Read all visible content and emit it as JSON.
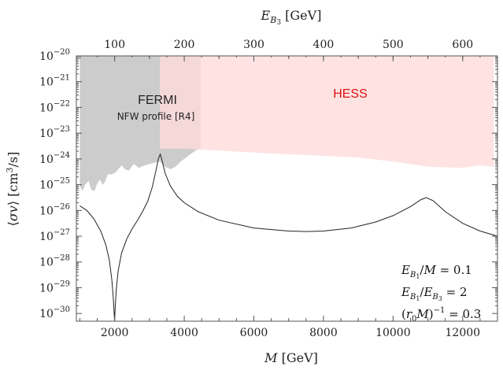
{
  "chart_data": {
    "type": "line",
    "xlabel": "M [GeV]",
    "ylabel": "⟨σv⟩ [cm³/s]",
    "x2label": "E_B3 [GeV]",
    "xlim": [
      900,
      13000
    ],
    "ylim_log10": [
      -30.3,
      -20
    ],
    "x_ticks": [
      2000,
      4000,
      6000,
      8000,
      10000,
      12000
    ],
    "x2_ticks": [
      100,
      200,
      300,
      400,
      500,
      600
    ],
    "x2_to_x_factor": 20,
    "y_ticks_exp": [
      -20,
      -21,
      -22,
      -23,
      -24,
      -25,
      -26,
      -27,
      -28,
      -29,
      -30
    ],
    "regions": [
      {
        "name": "FERMI",
        "sublabel": "NFW profile [R4]",
        "color": "#cccccc",
        "lower_boundary": [
          [
            1000,
            -25.05
          ],
          [
            1080,
            -25.25
          ],
          [
            1150,
            -25.0
          ],
          [
            1250,
            -24.85
          ],
          [
            1330,
            -25.2
          ],
          [
            1420,
            -25.25
          ],
          [
            1500,
            -24.95
          ],
          [
            1580,
            -24.8
          ],
          [
            1650,
            -25.0
          ],
          [
            1720,
            -24.9
          ],
          [
            1800,
            -24.6
          ],
          [
            1900,
            -24.6
          ],
          [
            2000,
            -24.55
          ],
          [
            2100,
            -24.4
          ],
          [
            2200,
            -24.25
          ],
          [
            2300,
            -24.4
          ],
          [
            2400,
            -24.45
          ],
          [
            2550,
            -24.2
          ],
          [
            2700,
            -24.35
          ],
          [
            2850,
            -24.25
          ],
          [
            3000,
            -24.2
          ],
          [
            3150,
            -24.15
          ],
          [
            3300,
            -24.1
          ],
          [
            3450,
            -24.3
          ],
          [
            3600,
            -24.4
          ],
          [
            3750,
            -24.3
          ],
          [
            3900,
            -24.1
          ],
          [
            4050,
            -23.95
          ],
          [
            4200,
            -23.8
          ],
          [
            4350,
            -23.65
          ],
          [
            4480,
            -23.6
          ]
        ],
        "x_range": [
          1000,
          4480
        ]
      },
      {
        "name": "HESS",
        "color": "#ffdcdc",
        "lower_boundary": [
          [
            3300,
            -23.6
          ],
          [
            4000,
            -23.6
          ],
          [
            5000,
            -23.68
          ],
          [
            6000,
            -23.75
          ],
          [
            7000,
            -23.82
          ],
          [
            8000,
            -23.88
          ],
          [
            9000,
            -23.95
          ],
          [
            10000,
            -24.1
          ],
          [
            11000,
            -24.3
          ],
          [
            12000,
            -24.35
          ],
          [
            12500,
            -24.25
          ],
          [
            12900,
            -24.3
          ]
        ],
        "x_range": [
          3300,
          12900
        ]
      }
    ],
    "series": [
      {
        "name": "",
        "color": "#222222",
        "points": [
          [
            1000,
            -25.82
          ],
          [
            1200,
            -26.0
          ],
          [
            1400,
            -26.32
          ],
          [
            1600,
            -26.8
          ],
          [
            1750,
            -27.35
          ],
          [
            1850,
            -27.95
          ],
          [
            1920,
            -28.7
          ],
          [
            1960,
            -29.4
          ],
          [
            1985,
            -30.0
          ],
          [
            2000,
            -30.3
          ],
          [
            2015,
            -29.8
          ],
          [
            2045,
            -29.1
          ],
          [
            2100,
            -28.35
          ],
          [
            2200,
            -27.65
          ],
          [
            2350,
            -27.1
          ],
          [
            2500,
            -26.72
          ],
          [
            2650,
            -26.4
          ],
          [
            2800,
            -26.05
          ],
          [
            2950,
            -25.65
          ],
          [
            3080,
            -25.1
          ],
          [
            3180,
            -24.5
          ],
          [
            3260,
            -23.98
          ],
          [
            3310,
            -23.82
          ],
          [
            3360,
            -24.05
          ],
          [
            3450,
            -24.55
          ],
          [
            3600,
            -25.05
          ],
          [
            3800,
            -25.45
          ],
          [
            4000,
            -25.7
          ],
          [
            4400,
            -26.05
          ],
          [
            5000,
            -26.38
          ],
          [
            6000,
            -26.68
          ],
          [
            7000,
            -26.8
          ],
          [
            7500,
            -26.82
          ],
          [
            8000,
            -26.8
          ],
          [
            8800,
            -26.68
          ],
          [
            9500,
            -26.45
          ],
          [
            10000,
            -26.2
          ],
          [
            10500,
            -25.85
          ],
          [
            10800,
            -25.58
          ],
          [
            10950,
            -25.5
          ],
          [
            11150,
            -25.62
          ],
          [
            11500,
            -26.05
          ],
          [
            12000,
            -26.5
          ],
          [
            12500,
            -26.8
          ],
          [
            13000,
            -27.0
          ]
        ]
      }
    ],
    "annotations": [
      "E_B1/M = 0.1",
      "E_B1/E_B3 = 2",
      "(r0 M)^(-1) = 0.3"
    ]
  }
}
